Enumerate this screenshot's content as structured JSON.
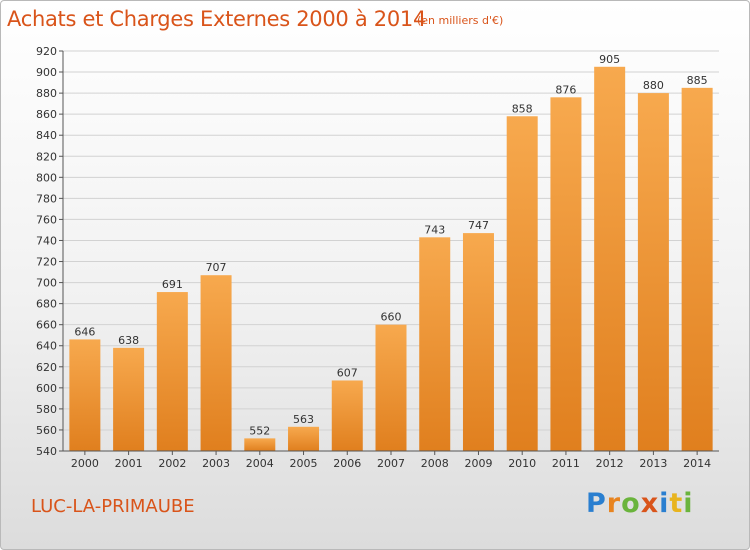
{
  "header": {
    "title": "Achats et Charges Externes 2000 à 2014",
    "subtitle": "(en milliers d'€)"
  },
  "footer": {
    "place": "LUC-LA-PRIMAUBE",
    "logo_text": "Proxiti",
    "logo_letters": [
      "P",
      "r",
      "o",
      "x",
      "i",
      "t",
      "i"
    ]
  },
  "colors": {
    "bar_light": "#f7a94e",
    "bar_dark": "#e07f1e",
    "accent_text": "#d9541a"
  },
  "chart_data": {
    "type": "bar",
    "title": "Achats et Charges Externes 2000 à 2014",
    "subtitle": "(en milliers d'€)",
    "xlabel": "",
    "ylabel": "",
    "categories": [
      "2000",
      "2001",
      "2002",
      "2003",
      "2004",
      "2005",
      "2006",
      "2007",
      "2008",
      "2009",
      "2010",
      "2011",
      "2012",
      "2013",
      "2014"
    ],
    "values": [
      646,
      638,
      691,
      707,
      552,
      563,
      607,
      660,
      743,
      747,
      858,
      876,
      905,
      880,
      885
    ],
    "ylim": [
      540,
      920
    ],
    "yticks": [
      540,
      560,
      580,
      600,
      620,
      640,
      660,
      680,
      700,
      720,
      740,
      760,
      780,
      800,
      820,
      840,
      860,
      880,
      900,
      920
    ],
    "grid": true,
    "data_labels": true
  }
}
